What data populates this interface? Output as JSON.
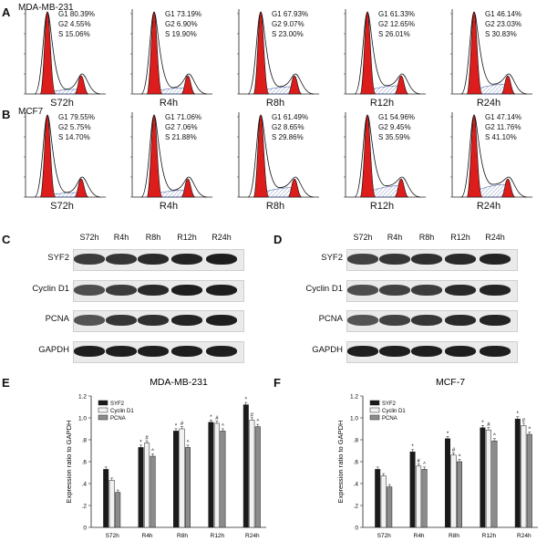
{
  "panel_letters": {
    "a": "A",
    "b": "B",
    "c": "C",
    "d": "D",
    "e": "E",
    "f": "F"
  },
  "flow": {
    "A": {
      "cell_line": "MDA-MB-231",
      "samples": [
        {
          "label": "S72h",
          "g1": "G1 80.39%",
          "g2": "G2 4.55%",
          "s": "S 15.06%"
        },
        {
          "label": "R4h",
          "g1": "G1 73.19%",
          "g2": "G2 6.90%",
          "s": "S 19.90%"
        },
        {
          "label": "R8h",
          "g1": "G1 67.93%",
          "g2": "G2 9.07%",
          "s": "S 23.00%"
        },
        {
          "label": "R12h",
          "g1": "G1 61.33%",
          "g2": "G2 12.65%",
          "s": "S 26.01%"
        },
        {
          "label": "R24h",
          "g1": "G1 46.14%",
          "g2": "G2 23.03%",
          "s": "S 30.83%"
        }
      ]
    },
    "B": {
      "cell_line": "MCF7",
      "samples": [
        {
          "label": "S72h",
          "g1": "G1 79.55%",
          "g2": "G2 5.75%",
          "s": "S 14.70%"
        },
        {
          "label": "R4h",
          "g1": "G1 71.06%",
          "g2": "G2 7.06%",
          "s": "S 21.88%"
        },
        {
          "label": "R8h",
          "g1": "G1 61.49%",
          "g2": "G2 8.65%",
          "s": "S 29.86%"
        },
        {
          "label": "R12h",
          "g1": "G1 54.96%",
          "g2": "G2 9.45%",
          "s": "S 35.59%"
        },
        {
          "label": "R24h",
          "g1": "G1 47.14%",
          "g2": "G2 11.76%",
          "s": "S 41.10%"
        }
      ]
    }
  },
  "blots": {
    "lanes": [
      "S72h",
      "R4h",
      "R8h",
      "R12h",
      "R24h"
    ],
    "rows": [
      "SYF2",
      "Cyclin D1",
      "PCNA",
      "GAPDH"
    ]
  },
  "chart_data": [
    {
      "type": "bar",
      "title": "MDA-MB-231",
      "ylabel": "Expression ratio to GAPDH",
      "ylim": [
        0,
        1.2
      ],
      "yticks": [
        "0",
        ".2",
        ".4",
        ".6",
        ".8",
        "1.0",
        "1.2"
      ],
      "categories": [
        "S72h",
        "R4h",
        "R8h",
        "R12h",
        "R24h"
      ],
      "series": [
        {
          "name": "SYF2",
          "values": [
            0.53,
            0.73,
            0.88,
            0.96,
            1.12
          ],
          "marks": [
            "",
            "*",
            "*",
            "*",
            "*"
          ]
        },
        {
          "name": "Cyclin D1",
          "values": [
            0.43,
            0.77,
            0.9,
            0.95,
            0.98
          ],
          "marks": [
            "",
            "#",
            "#",
            "#",
            "#"
          ]
        },
        {
          "name": "PCNA",
          "values": [
            0.32,
            0.65,
            0.73,
            0.88,
            0.92
          ],
          "marks": [
            "",
            "^",
            "^",
            "^",
            "^"
          ]
        }
      ],
      "legend": "top-left",
      "colors": [
        "#1a1a1a",
        "#f2f2f2",
        "#8c8c8c"
      ]
    },
    {
      "type": "bar",
      "title": "MCF-7",
      "ylabel": "Expression ratio to GAPDH",
      "ylim": [
        0,
        1.2
      ],
      "yticks": [
        "0",
        ".2",
        ".4",
        ".6",
        ".8",
        "1.0",
        "1.2"
      ],
      "categories": [
        "S72h",
        "R4h",
        "R8h",
        "R12h",
        "R24h"
      ],
      "series": [
        {
          "name": "SYF2",
          "values": [
            0.53,
            0.69,
            0.81,
            0.91,
            0.99
          ],
          "marks": [
            "",
            "*",
            "*",
            "*",
            "*"
          ]
        },
        {
          "name": "Cyclin D1",
          "values": [
            0.47,
            0.56,
            0.66,
            0.89,
            0.93
          ],
          "marks": [
            "",
            "#",
            "#",
            "#",
            "#"
          ]
        },
        {
          "name": "PCNA",
          "values": [
            0.37,
            0.53,
            0.6,
            0.79,
            0.85
          ],
          "marks": [
            "",
            "^",
            "^",
            "^",
            "^"
          ]
        }
      ],
      "legend": "top-left",
      "colors": [
        "#1a1a1a",
        "#f2f2f2",
        "#8c8c8c"
      ]
    }
  ]
}
